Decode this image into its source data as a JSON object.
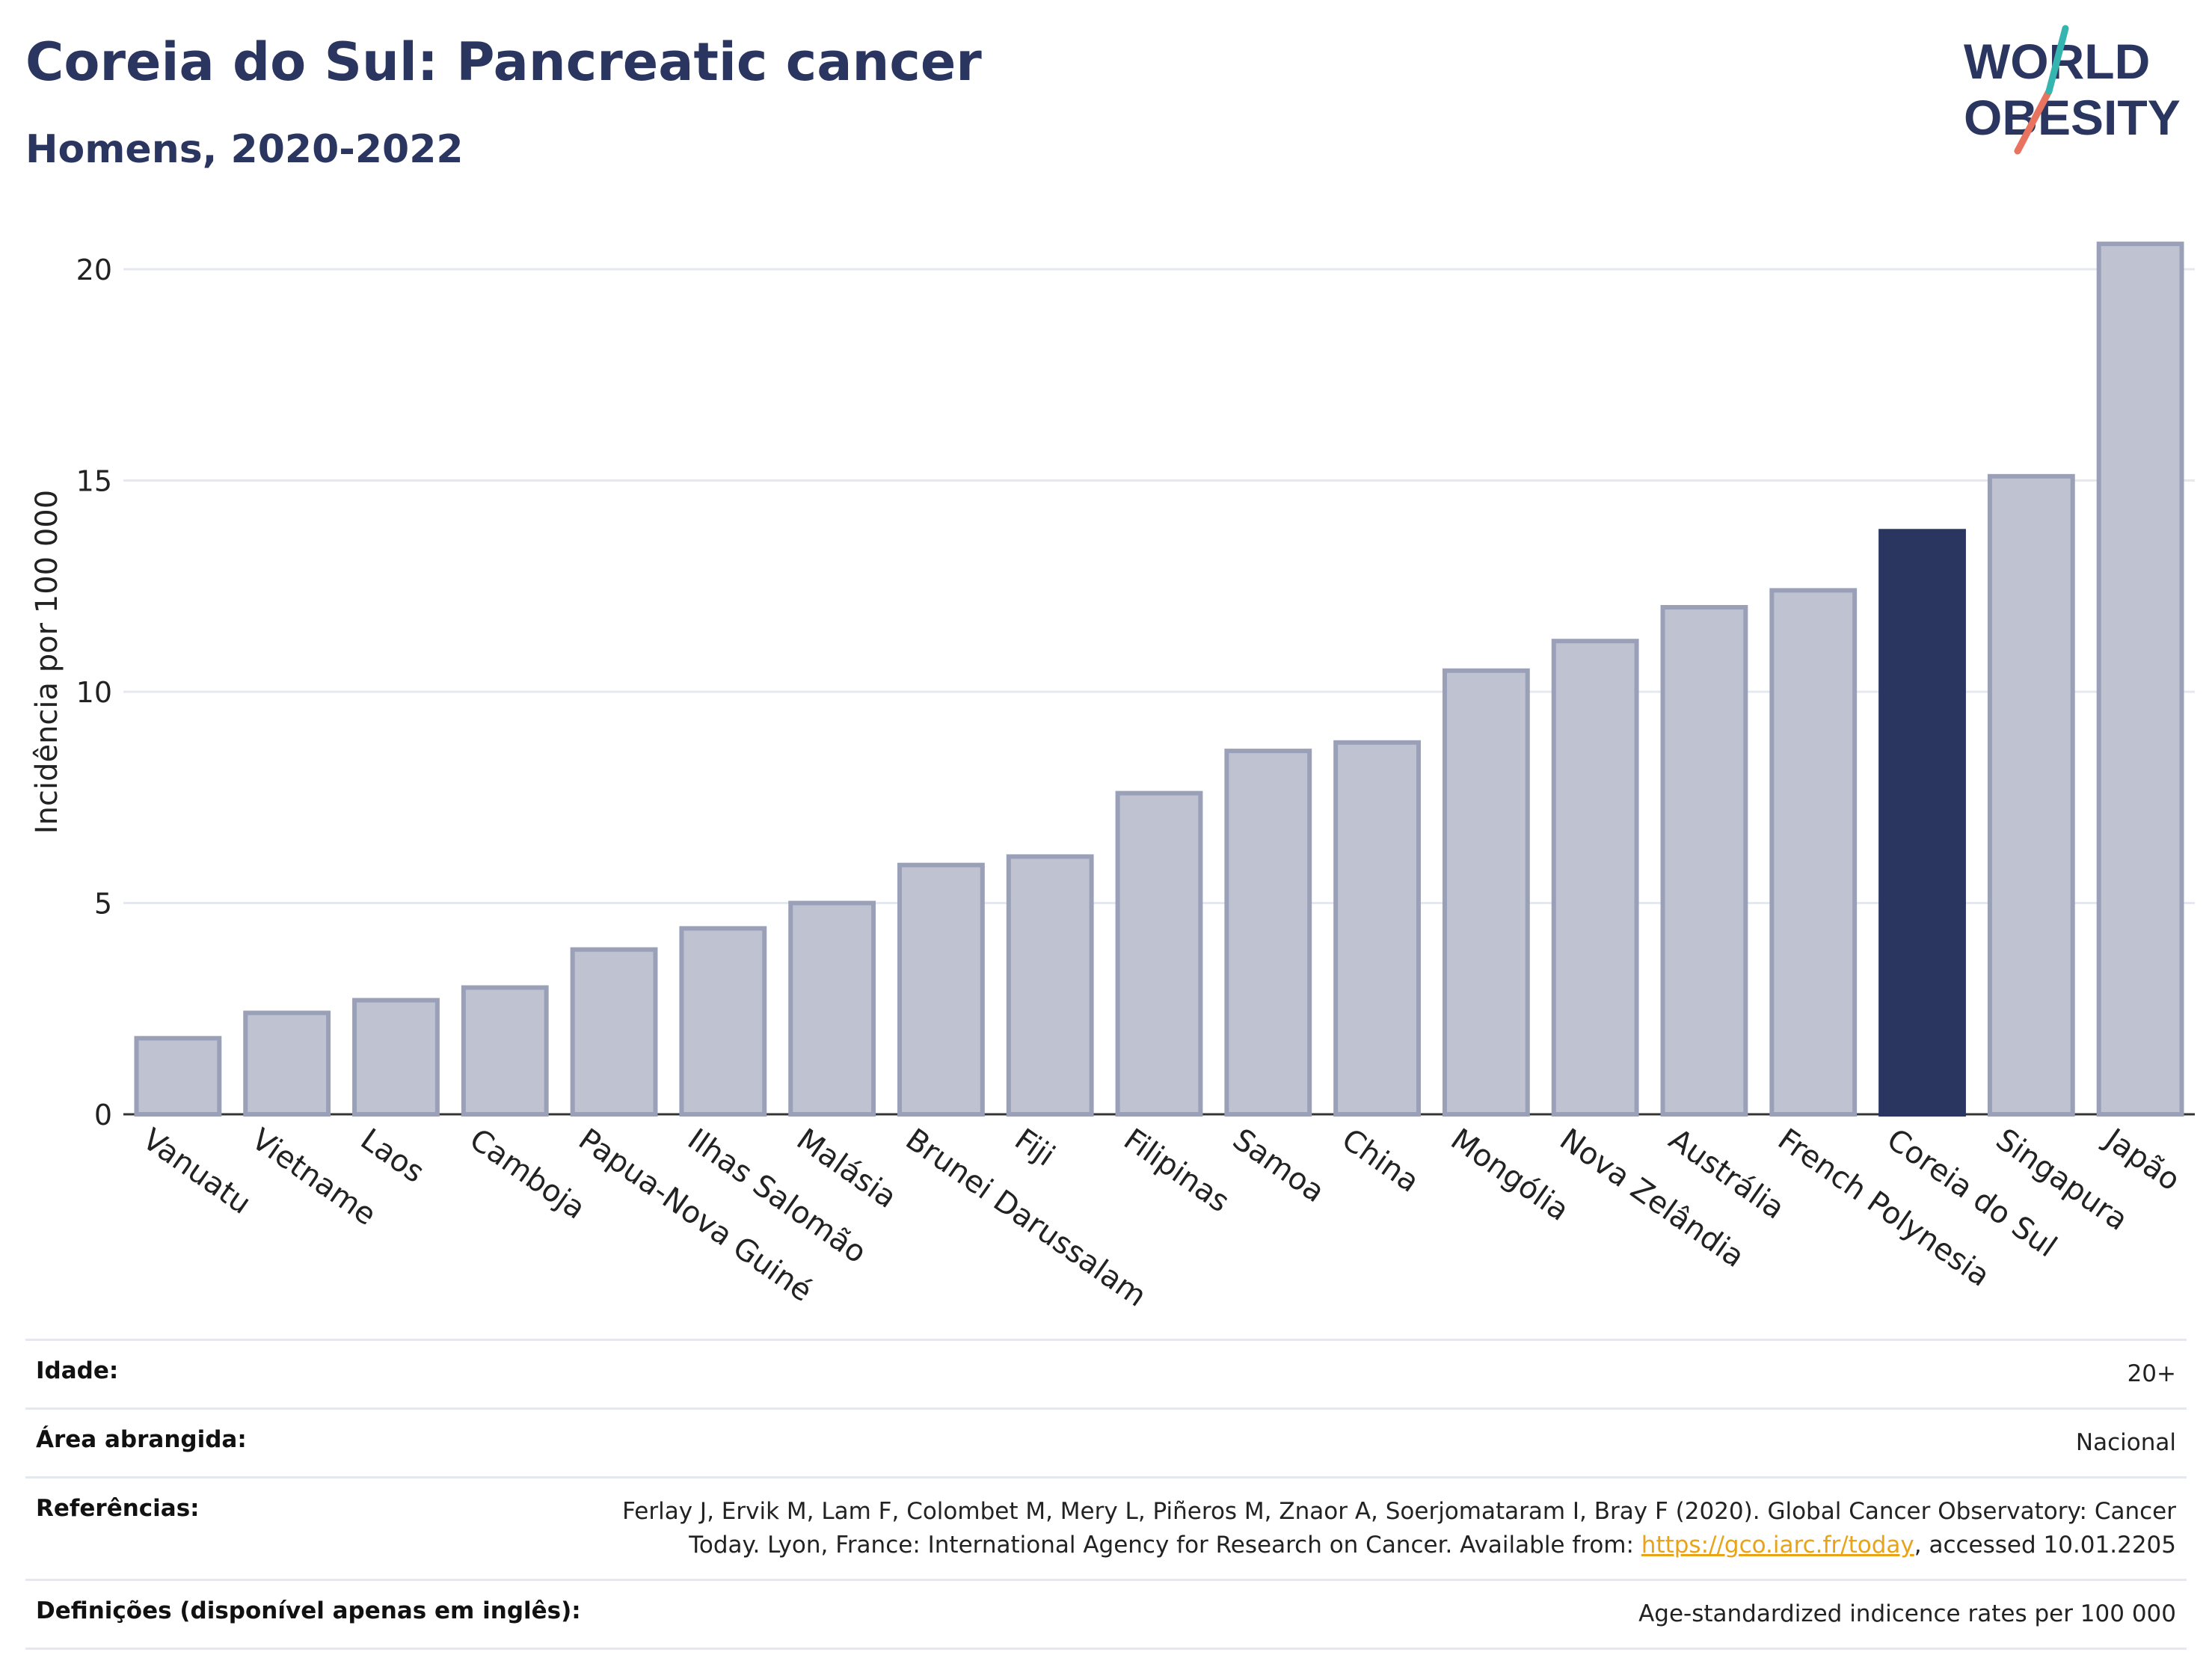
{
  "header": {
    "title": "Coreia do Sul: Pancreatic cancer",
    "subtitle": "Homens, 2020-2022"
  },
  "logo": {
    "line1": "WORLD",
    "line2": "OBESITY"
  },
  "colors": {
    "bar": "#bfc3d1",
    "bar_edge": "#9aa0b8",
    "highlight": "#2a3560",
    "grid": "#e6e8f0",
    "link": "#e8a317"
  },
  "chart_data": {
    "type": "bar",
    "categories": [
      "Vanuatu",
      "Vietname",
      "Laos",
      "Camboja",
      "Papua-Nova Guiné",
      "Ilhas Salomão",
      "Malásia",
      "Brunei Darussalam",
      "Fiji",
      "Filipinas",
      "Samoa",
      "China",
      "Mongólia",
      "Nova Zelândia",
      "Austrália",
      "French Polynesia",
      "Coreia do Sul",
      "Singapura",
      "Japão"
    ],
    "values": [
      1.8,
      2.4,
      2.7,
      3.0,
      3.9,
      4.4,
      5.0,
      5.9,
      6.1,
      7.6,
      8.6,
      8.8,
      10.5,
      11.2,
      12.0,
      12.4,
      13.8,
      15.1,
      20.6
    ],
    "highlight": "Coreia do Sul",
    "ylabel": "Incidência por 100 000",
    "yticks": [
      0,
      5,
      10,
      15,
      20
    ],
    "ylim": [
      0,
      21.5
    ],
    "grid": true
  },
  "footer": {
    "age_label": "Idade:",
    "age_value": "20+",
    "area_label": "Área abrangida:",
    "area_value": "Nacional",
    "ref_label": "Referências:",
    "ref_text_1": "Ferlay J, Ervik M, Lam F, Colombet M, Mery L, Piñeros M, Znaor A, Soerjomataram I, Bray F (2020). Global Cancer Observatory: Cancer Today. Lyon, France: International Agency for Research on Cancer. Available from: ",
    "ref_link": "https://gco.iarc.fr/today",
    "ref_text_2": ", accessed 10.01.2205",
    "def_label": "Definições (disponível apenas em inglês):",
    "def_value": "Age-standardized indicence rates per 100 000"
  }
}
